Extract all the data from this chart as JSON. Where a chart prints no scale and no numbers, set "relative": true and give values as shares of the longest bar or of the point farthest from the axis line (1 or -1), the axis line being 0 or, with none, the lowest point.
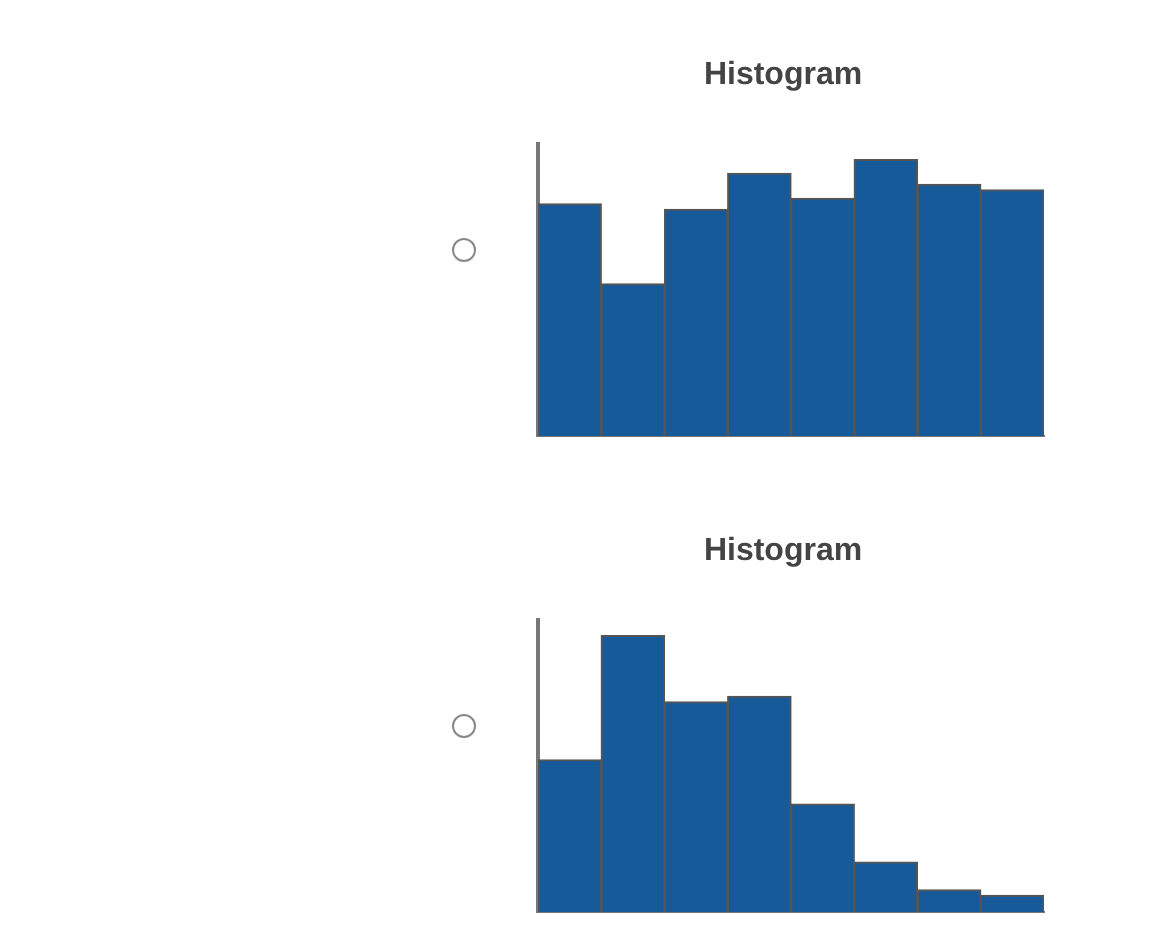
{
  "chart_data": [
    {
      "type": "bar",
      "title": "Histogram",
      "relative": true,
      "categories": [
        null,
        null,
        null,
        null,
        null,
        null,
        null,
        null
      ],
      "color": "#165a9a",
      "values": [
        0.84,
        0.55,
        0.82,
        0.95,
        0.86,
        1,
        0.91,
        0.89
      ]
    },
    {
      "type": "bar",
      "title": "Histogram",
      "relative": true,
      "categories": [
        null,
        null,
        null,
        null,
        null,
        null,
        null,
        null
      ],
      "color": "#165a9a",
      "values": [
        0.55,
        1,
        0.76,
        0.78,
        0.39,
        0.18,
        0.08,
        0.06
      ]
    }
  ]
}
